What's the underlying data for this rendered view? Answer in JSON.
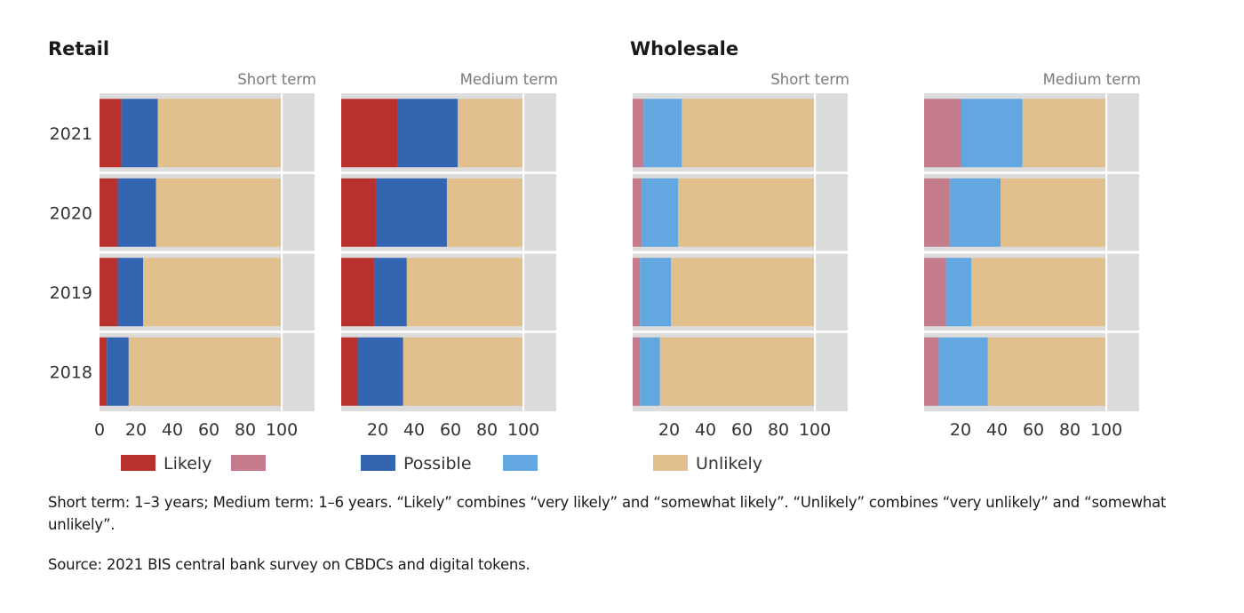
{
  "sections": [
    {
      "title": "Retail"
    },
    {
      "title": "Wholesale"
    }
  ],
  "chart_data": [
    {
      "type": "bar",
      "orientation": "horizontal",
      "stacked": true,
      "section": "Retail",
      "title": "Short term",
      "categories": [
        "2021",
        "2020",
        "2019",
        "2018"
      ],
      "series": [
        {
          "name": "Likely",
          "values": [
            12,
            10,
            10,
            4
          ]
        },
        {
          "name": "Possible",
          "values": [
            20,
            21,
            14,
            12
          ]
        },
        {
          "name": "Unlikely",
          "values": [
            68,
            69,
            76,
            84
          ]
        }
      ],
      "xlim": [
        0,
        118
      ],
      "xticks": [
        "0",
        "20",
        "40",
        "60",
        "80",
        "100"
      ],
      "xtick_values": [
        0,
        20,
        40,
        60,
        80,
        100
      ]
    },
    {
      "type": "bar",
      "orientation": "horizontal",
      "stacked": true,
      "section": "Retail",
      "title": "Medium term",
      "categories": [
        "2021",
        "2020",
        "2019",
        "2018"
      ],
      "series": [
        {
          "name": "Likely",
          "values": [
            31,
            19,
            18,
            9
          ]
        },
        {
          "name": "Possible",
          "values": [
            33,
            39,
            18,
            25
          ]
        },
        {
          "name": "Unlikely",
          "values": [
            36,
            42,
            64,
            66
          ]
        }
      ],
      "xlim": [
        0,
        118
      ],
      "xticks": [
        "20",
        "40",
        "60",
        "80",
        "100"
      ],
      "xtick_values": [
        20,
        40,
        60,
        80,
        100
      ]
    },
    {
      "type": "bar",
      "orientation": "horizontal",
      "stacked": true,
      "section": "Wholesale",
      "title": "Short term",
      "categories": [
        "2021",
        "2020",
        "2019",
        "2018"
      ],
      "series": [
        {
          "name": "Likely",
          "values": [
            6,
            5,
            4,
            4
          ]
        },
        {
          "name": "Possible",
          "values": [
            21,
            20,
            17,
            11
          ]
        },
        {
          "name": "Unlikely",
          "values": [
            73,
            75,
            79,
            85
          ]
        }
      ],
      "xlim": [
        0,
        118
      ],
      "xticks": [
        "20",
        "40",
        "60",
        "80",
        "100"
      ],
      "xtick_values": [
        20,
        40,
        60,
        80,
        100
      ]
    },
    {
      "type": "bar",
      "orientation": "horizontal",
      "stacked": true,
      "section": "Wholesale",
      "title": "Medium term",
      "categories": [
        "2021",
        "2020",
        "2019",
        "2018"
      ],
      "series": [
        {
          "name": "Likely",
          "values": [
            20,
            14,
            12,
            8
          ]
        },
        {
          "name": "Possible",
          "values": [
            34,
            28,
            14,
            27
          ]
        },
        {
          "name": "Unlikely",
          "values": [
            46,
            58,
            74,
            65
          ]
        }
      ],
      "xlim": [
        0,
        118
      ],
      "xticks": [
        "20",
        "40",
        "60",
        "80",
        "100"
      ],
      "xtick_values": [
        20,
        40,
        60,
        80,
        100
      ]
    }
  ],
  "colors": {
    "retail_likely": "#b8312f",
    "retail_possible": "#3465b0",
    "wholesale_likely": "#c47b8c",
    "wholesale_possible": "#62a7e0",
    "unlikely": "#e2c08d",
    "panel_bg": "#dcdcdc"
  },
  "legend": [
    {
      "label": "Likely",
      "swatch": "retail_likely"
    },
    {
      "label": "",
      "swatch": "wholesale_likely"
    },
    {
      "label": "Possible",
      "swatch": "retail_possible"
    },
    {
      "label": "",
      "swatch": "wholesale_possible"
    },
    {
      "label": "Unlikely",
      "swatch": "unlikely"
    }
  ],
  "footnote": "Short term: 1–3 years; Medium term: 1–6 years. “Likely” combines “very likely” and “somewhat likely”. “Unlikely” combines “very unlikely” and “somewhat unlikely”.",
  "source": "Source: 2021 BIS central bank survey on CBDCs and digital tokens."
}
